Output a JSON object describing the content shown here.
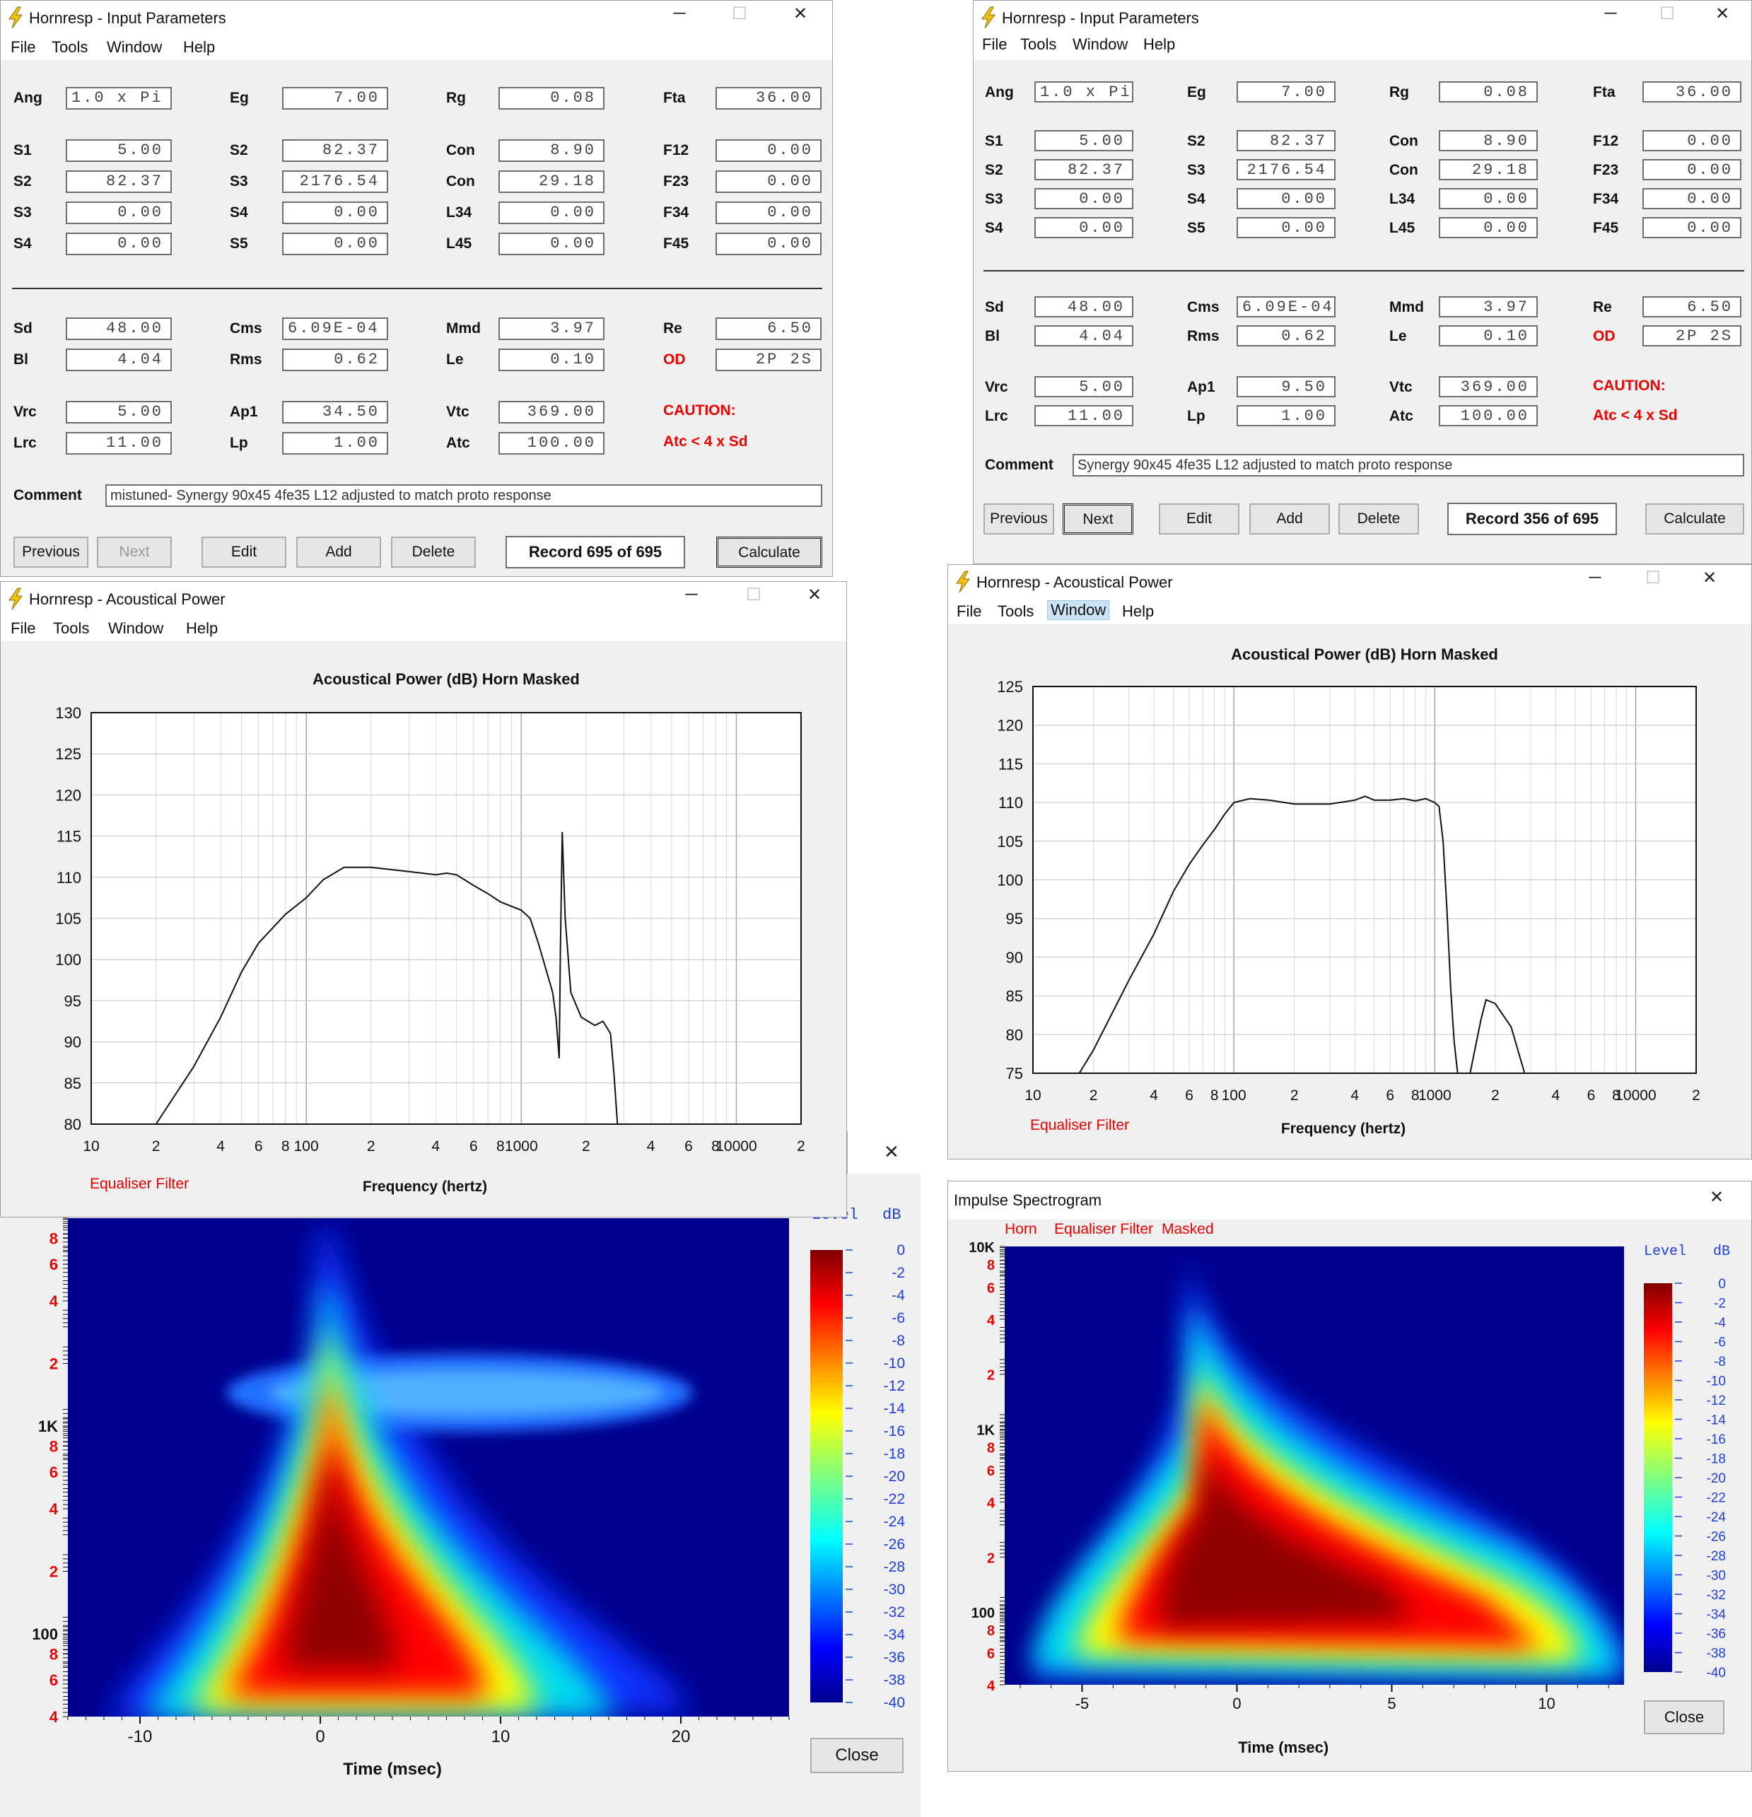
{
  "ip_left": {
    "title": "Hornresp - Input Parameters",
    "menu": [
      "File",
      "Tools",
      "Window",
      "Help"
    ],
    "fields": [
      {
        "label": "Ang",
        "value": "1.0 x Pi"
      },
      {
        "label": "Eg",
        "value": "7.00"
      },
      {
        "label": "Rg",
        "value": "0.08"
      },
      {
        "label": "Fta",
        "value": "36.00"
      },
      {
        "label": "S1",
        "value": "5.00"
      },
      {
        "label": "S2",
        "value": "82.37"
      },
      {
        "label": "Con",
        "value": "8.90"
      },
      {
        "label": "F12",
        "value": "0.00"
      },
      {
        "label": "S2",
        "value": "82.37"
      },
      {
        "label": "S3",
        "value": "2176.54"
      },
      {
        "label": "Con",
        "value": "29.18"
      },
      {
        "label": "F23",
        "value": "0.00"
      },
      {
        "label": "S3",
        "value": "0.00"
      },
      {
        "label": "S4",
        "value": "0.00"
      },
      {
        "label": "L34",
        "value": "0.00"
      },
      {
        "label": "F34",
        "value": "0.00"
      },
      {
        "label": "S4",
        "value": "0.00"
      },
      {
        "label": "S5",
        "value": "0.00"
      },
      {
        "label": "L45",
        "value": "0.00"
      },
      {
        "label": "F45",
        "value": "0.00"
      },
      {
        "label": "Sd",
        "value": "48.00"
      },
      {
        "label": "Cms",
        "value": "6.09E-04"
      },
      {
        "label": "Mmd",
        "value": "3.97"
      },
      {
        "label": "Re",
        "value": "6.50"
      },
      {
        "label": "Bl",
        "value": "4.04"
      },
      {
        "label": "Rms",
        "value": "0.62"
      },
      {
        "label": "Le",
        "value": "0.10"
      },
      {
        "label": "OD",
        "value": "2P 2S"
      },
      {
        "label": "Vrc",
        "value": "5.00"
      },
      {
        "label": "Ap1",
        "value": "34.50"
      },
      {
        "label": "Vtc",
        "value": "369.00"
      },
      {
        "label": "Lrc",
        "value": "11.00"
      },
      {
        "label": "Lp",
        "value": "1.00"
      },
      {
        "label": "Atc",
        "value": "100.00"
      }
    ],
    "caution": "CAUTION:",
    "caution_detail": "Atc < 4 x Sd",
    "comment_label": "Comment",
    "comment": "mistuned- Synergy 90x45 4fe35  L12 adjusted to match proto response",
    "buttons": [
      "Previous",
      "Next",
      "Edit",
      "Add",
      "Delete",
      "Calculate"
    ],
    "record": "Record 695 of 695"
  },
  "ip_right": {
    "title": "Hornresp - Input Parameters",
    "menu": [
      "File",
      "Tools",
      "Window",
      "Help"
    ],
    "fields": [
      {
        "label": "Ang",
        "value": "1.0 x Pi"
      },
      {
        "label": "Eg",
        "value": "7.00"
      },
      {
        "label": "Rg",
        "value": "0.08"
      },
      {
        "label": "Fta",
        "value": "36.00"
      },
      {
        "label": "S1",
        "value": "5.00"
      },
      {
        "label": "S2",
        "value": "82.37"
      },
      {
        "label": "Con",
        "value": "8.90"
      },
      {
        "label": "F12",
        "value": "0.00"
      },
      {
        "label": "S2",
        "value": "82.37"
      },
      {
        "label": "S3",
        "value": "2176.54"
      },
      {
        "label": "Con",
        "value": "29.18"
      },
      {
        "label": "F23",
        "value": "0.00"
      },
      {
        "label": "S3",
        "value": "0.00"
      },
      {
        "label": "S4",
        "value": "0.00"
      },
      {
        "label": "L34",
        "value": "0.00"
      },
      {
        "label": "F34",
        "value": "0.00"
      },
      {
        "label": "S4",
        "value": "0.00"
      },
      {
        "label": "S5",
        "value": "0.00"
      },
      {
        "label": "L45",
        "value": "0.00"
      },
      {
        "label": "F45",
        "value": "0.00"
      },
      {
        "label": "Sd",
        "value": "48.00"
      },
      {
        "label": "Cms",
        "value": "6.09E-04"
      },
      {
        "label": "Mmd",
        "value": "3.97"
      },
      {
        "label": "Re",
        "value": "6.50"
      },
      {
        "label": "Bl",
        "value": "4.04"
      },
      {
        "label": "Rms",
        "value": "0.62"
      },
      {
        "label": "Le",
        "value": "0.10"
      },
      {
        "label": "OD",
        "value": "2P 2S"
      },
      {
        "label": "Vrc",
        "value": "5.00"
      },
      {
        "label": "Ap1",
        "value": "9.50"
      },
      {
        "label": "Vtc",
        "value": "369.00"
      },
      {
        "label": "Lrc",
        "value": "11.00"
      },
      {
        "label": "Lp",
        "value": "1.00"
      },
      {
        "label": "Atc",
        "value": "100.00"
      }
    ],
    "caution": "CAUTION:",
    "caution_detail": "Atc < 4 x Sd",
    "comment_label": "Comment",
    "comment": "Synergy 90x45 4fe35  L12 adjusted to match proto response",
    "buttons": [
      "Previous",
      "Next",
      "Edit",
      "Add",
      "Delete",
      "Calculate"
    ],
    "record": "Record 356 of 695"
  },
  "ap_left": {
    "title": "Hornresp - Acoustical Power",
    "menu": [
      "File",
      "Tools",
      "Window",
      "Help"
    ],
    "equaliser": "Equaliser Filter"
  },
  "ap_right": {
    "title": "Hornresp - Acoustical Power",
    "menu": [
      "File",
      "Tools",
      "Window",
      "Help"
    ],
    "equaliser": "Equaliser Filter"
  },
  "sp_left": {
    "level_label": "Level",
    "db_label": "dB",
    "close": "Close"
  },
  "sp_right": {
    "title": "Impulse Spectrogram",
    "tags": [
      "Horn",
      "Equaliser Filter",
      "Masked"
    ],
    "level_label": "Level",
    "db_label": "dB",
    "close": "Close"
  },
  "chart_data": [
    {
      "type": "line",
      "title": "Acoustical Power (dB)   Horn   Masked",
      "xlabel": "Frequency (hertz)",
      "ylabel": "",
      "xscale": "log",
      "xlim": [
        10,
        20000
      ],
      "ylim": [
        80,
        130
      ],
      "x_ticks": [
        "10",
        "2",
        "4",
        "6",
        "8",
        "100",
        "2",
        "4",
        "6",
        "8",
        "1000",
        "2",
        "4",
        "6",
        "8",
        "10000",
        "2"
      ],
      "y_ticks": [
        80,
        85,
        90,
        95,
        100,
        105,
        110,
        115,
        120,
        125,
        130
      ],
      "series": [
        {
          "x": [
            20,
            30,
            40,
            50,
            60,
            80,
            100,
            120,
            150,
            200,
            300,
            400,
            450,
            500,
            600,
            700,
            800,
            1000,
            1100,
            1200,
            1400,
            1450,
            1500,
            1510,
            1520,
            1550,
            1600,
            1700,
            1900,
            2200,
            2400,
            2600,
            2700,
            2800
          ],
          "y": [
            80,
            87,
            93,
            98.5,
            102,
            105.5,
            107.5,
            109.7,
            111.2,
            111.2,
            110.7,
            110.3,
            110.5,
            110.3,
            109,
            108,
            107,
            106,
            105,
            102,
            96,
            93,
            88,
            94,
            101,
            115.5,
            105,
            96,
            93,
            92,
            92.5,
            91,
            86,
            80
          ]
        }
      ]
    },
    {
      "type": "line",
      "title": "Acoustical Power (dB)   Horn   Masked",
      "xlabel": "Frequency (hertz)",
      "ylabel": "",
      "xscale": "log",
      "xlim": [
        10,
        20000
      ],
      "ylim": [
        75,
        125
      ],
      "x_ticks": [
        "10",
        "2",
        "4",
        "6",
        "8",
        "100",
        "2",
        "4",
        "6",
        "8",
        "1000",
        "2",
        "4",
        "6",
        "8",
        "10000",
        "2"
      ],
      "y_ticks": [
        75,
        80,
        85,
        90,
        95,
        100,
        105,
        110,
        115,
        120,
        125
      ],
      "series": [
        {
          "x": [
            17,
            20,
            30,
            40,
            50,
            60,
            70,
            80,
            90,
            100,
            120,
            150,
            200,
            300,
            400,
            450,
            500,
            600,
            700,
            800,
            900,
            1000,
            1050,
            1100,
            1150,
            1200,
            1250,
            1300,
            1500,
            1700,
            1800,
            2000,
            2400,
            2800
          ],
          "y": [
            75,
            78,
            87,
            93,
            98.5,
            102,
            104.5,
            106.5,
            108.5,
            110,
            110.5,
            110.3,
            109.8,
            109.8,
            110.3,
            110.8,
            110.3,
            110.3,
            110.5,
            110.2,
            110.5,
            110,
            109.5,
            105,
            96,
            86,
            79,
            75,
            75,
            82,
            84.5,
            84,
            81,
            75
          ]
        }
      ]
    },
    {
      "type": "heatmap",
      "title": "",
      "xlabel": "Time (msec)",
      "ylabel": "",
      "yscale": "log",
      "xlim": [
        -14,
        26
      ],
      "ylim": [
        40,
        10000
      ],
      "x_ticks": [
        "-10",
        "0",
        "10",
        "20"
      ],
      "y_ticks": [
        "8",
        "6",
        "4",
        "2",
        "1K",
        "8",
        "6",
        "4",
        "2",
        "100",
        "8",
        "6",
        "4"
      ],
      "colorbar": {
        "label": "Level dB",
        "ticks": [
          0,
          -2,
          -4,
          -6,
          -8,
          -10,
          -12,
          -14,
          -16,
          -18,
          -20,
          -22,
          -24,
          -26,
          -28,
          -30,
          -32,
          -34,
          -36,
          -38,
          -40
        ]
      }
    },
    {
      "type": "heatmap",
      "title": "",
      "xlabel": "Time (msec)",
      "ylabel": "",
      "yscale": "log",
      "xlim": [
        -7.5,
        12.5
      ],
      "ylim": [
        40,
        10000
      ],
      "x_ticks": [
        "-5",
        "0",
        "5",
        "10"
      ],
      "y_ticks": [
        "10K",
        "8",
        "6",
        "4",
        "2",
        "1K",
        "8",
        "6",
        "4",
        "2",
        "100",
        "8",
        "6",
        "4"
      ],
      "colorbar": {
        "label": "Level dB",
        "ticks": [
          0,
          -2,
          -4,
          -6,
          -8,
          -10,
          -12,
          -14,
          -16,
          -18,
          -20,
          -22,
          -24,
          -26,
          -28,
          -30,
          -32,
          -34,
          -36,
          -38,
          -40
        ]
      }
    }
  ]
}
